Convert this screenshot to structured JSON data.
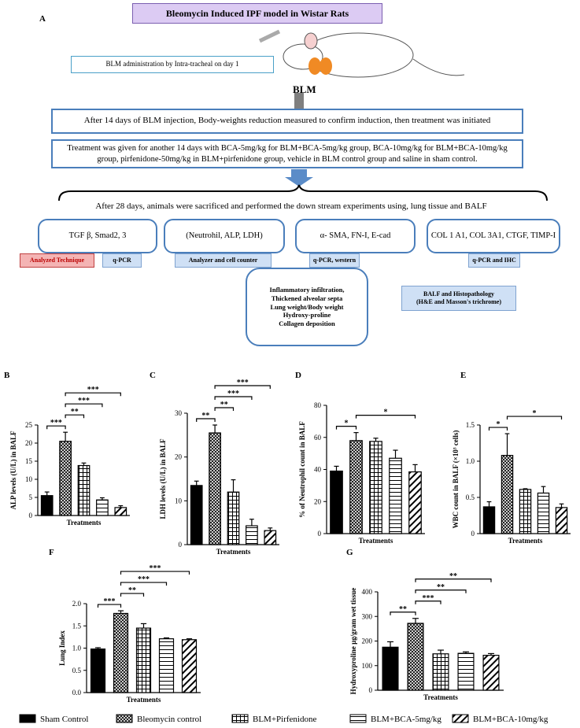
{
  "diagram": {
    "panel": "A",
    "title": "Bleomycin Induced IPF model in Wistar Rats",
    "administration": "BLM administration by  Intra-tracheal on day 1",
    "agent": "BLM",
    "steps": [
      "After 14 days of BLM injection, Body-weights  reduction measured to confirm induction, then treatment was initiated",
      "Treatment was given for another 14 days with BCA-5mg/kg  for BLM+BCA-5mg/kg group,  BCA-10mg/kg  for BLM+BCA-10mg/kg group, pirfenidone-50mg/kg in BLM+pirfenidone group, vehicle in BLM control group and saline in sham control.",
      "After 28 days, animals were sacrificed and performed the down stream experiments using, lung tissue and BALF"
    ],
    "technique_label": "Analyzed Technique",
    "analyses": [
      {
        "targets": "TGF β, Smad2, 3",
        "technique": "q-PCR"
      },
      {
        "targets": "(Neutrohil, ALP, LDH)",
        "technique": "Analyzer and cell counter"
      },
      {
        "targets": "α- SMA, FN-I, E-cad",
        "technique": "q-PCR, western"
      },
      {
        "targets": "COL 1 A1, COL 3A1, CTGF, TIMP-I",
        "technique": "q-PCR and IHC"
      }
    ],
    "outcomes": [
      "Inflammatory infiltration,",
      "Thickened alveolar septa",
      "Lung weight/Body weight",
      "Hydroxy-proline",
      "Collagen deposition"
    ],
    "histology": [
      "BALF and Histopathology",
      "(H&E and Masson's trichrome)"
    ]
  },
  "legend": [
    {
      "name": "Sham Control",
      "pattern": "solid"
    },
    {
      "name": "Bleomycin control",
      "pattern": "crosshatch"
    },
    {
      "name": "BLM+Pirfenidone",
      "pattern": "grid"
    },
    {
      "name": "BLM+BCA-5mg/kg",
      "pattern": "horizontal"
    },
    {
      "name": "BLM+BCA-10mg/kg",
      "pattern": "diagonal"
    }
  ],
  "chart_data": [
    {
      "type": "bar",
      "panel": "B",
      "ylabel": "ALP levels (U/L) in BALF",
      "xlabel": "Treatments",
      "values": [
        5.5,
        20.5,
        13.8,
        4.3,
        2.2
      ],
      "errors": [
        1,
        2.5,
        0.7,
        0.6,
        0.5
      ],
      "ylim": [
        0,
        25
      ],
      "yticks": [
        0,
        5,
        10,
        15,
        20,
        25
      ],
      "significance": [
        {
          "from": 0,
          "to": 1,
          "label": "***"
        },
        {
          "from": 1,
          "to": 2,
          "label": "**"
        },
        {
          "from": 1,
          "to": 3,
          "label": "***"
        },
        {
          "from": 1,
          "to": 4,
          "label": "***"
        }
      ]
    },
    {
      "type": "bar",
      "panel": "C",
      "ylabel": "LDH levels (U/L) in BALF",
      "xlabel": "Treatments",
      "values": [
        13.5,
        25.5,
        12,
        4.3,
        3.2
      ],
      "errors": [
        1,
        1.8,
        2.8,
        1.5,
        0.6
      ],
      "ylim": [
        0,
        30
      ],
      "yticks": [
        0,
        10,
        20,
        30
      ],
      "significance": [
        {
          "from": 0,
          "to": 1,
          "label": "**"
        },
        {
          "from": 1,
          "to": 2,
          "label": "**"
        },
        {
          "from": 1,
          "to": 3,
          "label": "***"
        },
        {
          "from": 1,
          "to": 4,
          "label": "***"
        }
      ]
    },
    {
      "type": "bar",
      "panel": "D",
      "ylabel": "% of Neutrophil count in BALF",
      "xlabel": "Treatments",
      "values": [
        39,
        58,
        57.5,
        47,
        38.5
      ],
      "errors": [
        3,
        5,
        2,
        5,
        4.5
      ],
      "ylim": [
        0,
        80
      ],
      "yticks": [
        0,
        20,
        40,
        60,
        80
      ],
      "significance": [
        {
          "from": 0,
          "to": 1,
          "label": "*"
        },
        {
          "from": 1,
          "to": 4,
          "label": "*"
        }
      ]
    },
    {
      "type": "bar",
      "panel": "E",
      "ylabel": "WBC count in BALF (×10³ cells)",
      "xlabel": "Treatments",
      "values": [
        0.37,
        1.08,
        0.61,
        0.56,
        0.36
      ],
      "errors": [
        0.07,
        0.3,
        0.01,
        0.09,
        0.05
      ],
      "ylim": [
        0,
        1.5
      ],
      "yticks": [
        0,
        0.5,
        {
          "value": 1,
          "label": "1.0"
        },
        1.5
      ],
      "significance": [
        {
          "from": 0,
          "to": 1,
          "label": "*"
        },
        {
          "from": 1,
          "to": 4,
          "label": "*"
        }
      ]
    },
    {
      "type": "bar",
      "panel": "F",
      "ylabel": "Lung Index",
      "xlabel": "Treatments",
      "values": [
        0.98,
        1.78,
        1.45,
        1.21,
        1.19
      ],
      "errors": [
        0.03,
        0.06,
        0.1,
        0.02,
        0.02
      ],
      "ylim": [
        0,
        2
      ],
      "yticks": [
        {
          "value": 0,
          "label": "0.0"
        },
        0.5,
        {
          "value": 1,
          "label": "1.0"
        },
        1.5,
        {
          "value": 2,
          "label": "2.0"
        }
      ],
      "significance": [
        {
          "from": 0,
          "to": 1,
          "label": "***"
        },
        {
          "from": 1,
          "to": 2,
          "label": "**"
        },
        {
          "from": 1,
          "to": 3,
          "label": "***"
        },
        {
          "from": 1,
          "to": 4,
          "label": "***"
        }
      ]
    },
    {
      "type": "bar",
      "panel": "G",
      "ylabel": "Hydroxyproline µg/gram wet tissue",
      "xlabel": "Treatments",
      "values": [
        175,
        272,
        148,
        150,
        142
      ],
      "errors": [
        22,
        20,
        15,
        6,
        7
      ],
      "ylim": [
        0,
        400
      ],
      "yticks": [
        0,
        100,
        200,
        300,
        400
      ],
      "significance": [
        {
          "from": 0,
          "to": 1,
          "label": "**"
        },
        {
          "from": 1,
          "to": 2,
          "label": "***"
        },
        {
          "from": 1,
          "to": 3,
          "label": "**"
        },
        {
          "from": 1,
          "to": 4,
          "label": "**"
        }
      ]
    }
  ]
}
